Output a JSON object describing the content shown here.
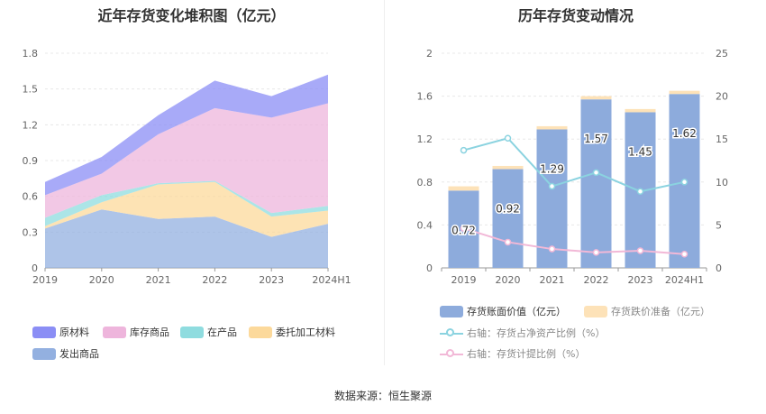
{
  "left_title": "近年存货变化堆积图（亿元）",
  "right_title": "历年存货变动情况",
  "source": "数据来源：恒生聚源",
  "colors": {
    "原材料": "#8b8ef5",
    "库存商品": "#eeb5dc",
    "在产品": "#8fdcdf",
    "委托加工材料": "#fcd99b",
    "发出商品": "#93b0e0",
    "bar_main": "#8dabdc",
    "bar_reserve": "#fde2b8",
    "line_right1": "#8bd3e0",
    "line_right2": "#f2b8d7"
  },
  "chart_data": [
    {
      "type": "area",
      "title": "近年存货变化堆积图（亿元）",
      "categories": [
        "2019",
        "2020",
        "2021",
        "2022",
        "2023",
        "2024H1"
      ],
      "ylim": [
        0,
        1.8
      ],
      "yticks": [
        "0",
        "0.3",
        "0.6",
        "0.9",
        "1.2",
        "1.5",
        "1.8"
      ],
      "stacked": true,
      "series": [
        {
          "name": "发出商品",
          "values": [
            0.33,
            0.49,
            0.41,
            0.43,
            0.26,
            0.37
          ]
        },
        {
          "name": "委托加工材料",
          "values": [
            0.02,
            0.06,
            0.29,
            0.29,
            0.17,
            0.11
          ]
        },
        {
          "name": "在产品",
          "values": [
            0.07,
            0.06,
            0.01,
            0.01,
            0.03,
            0.04
          ]
        },
        {
          "name": "库存商品",
          "values": [
            0.19,
            0.18,
            0.41,
            0.61,
            0.8,
            0.86
          ]
        },
        {
          "name": "原材料",
          "values": [
            0.11,
            0.14,
            0.16,
            0.23,
            0.18,
            0.24
          ]
        }
      ],
      "legend": [
        "原材料",
        "库存商品",
        "在产品",
        "委托加工材料",
        "发出商品"
      ]
    },
    {
      "type": "bar",
      "title": "历年存货变动情况",
      "categories": [
        "2019",
        "2020",
        "2021",
        "2022",
        "2023",
        "2024H1"
      ],
      "ylim": [
        0,
        2
      ],
      "yticks": [
        "0",
        "0.4",
        "0.8",
        "1.2",
        "1.6",
        "2"
      ],
      "y2lim": [
        0,
        25
      ],
      "y2ticks": [
        "0",
        "5",
        "10",
        "15",
        "20",
        "25"
      ],
      "series": [
        {
          "name": "存货账面价值（亿元）",
          "type": "bar",
          "values": [
            0.72,
            0.92,
            1.29,
            1.57,
            1.45,
            1.62
          ],
          "labels": [
            "0.72",
            "0.92",
            "1.29",
            "1.57",
            "1.45",
            "1.62"
          ]
        },
        {
          "name": "存货跌价准备（亿元）",
          "type": "bar",
          "values": [
            0.04,
            0.03,
            0.03,
            0.03,
            0.03,
            0.03
          ]
        },
        {
          "name": "右轴：存货占净资产比例（%）",
          "type": "line",
          "axis": "right",
          "values": [
            13.7,
            15.1,
            9.5,
            11.1,
            8.9,
            10.0
          ]
        },
        {
          "name": "右轴：存货计提比例（%）",
          "type": "line",
          "axis": "right",
          "values": [
            4.6,
            3.0,
            2.2,
            1.8,
            2.0,
            1.6
          ]
        }
      ]
    }
  ]
}
